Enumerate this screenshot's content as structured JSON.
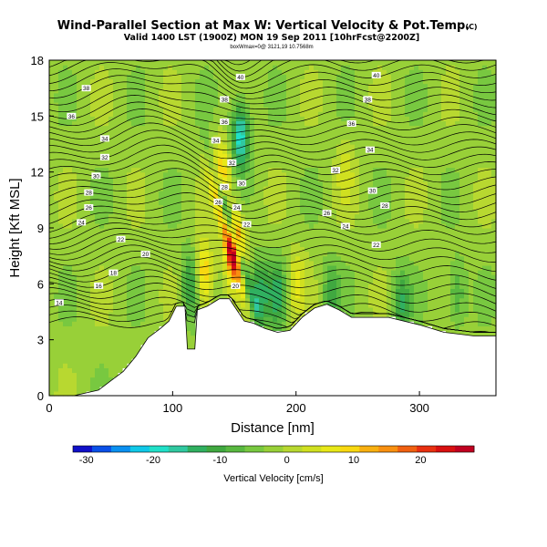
{
  "figure": {
    "title": "Wind-Parallel Section at Max W: Vertical Velocity & Pot.Temp.",
    "copyright": "(C)",
    "subtitle": "Valid 1400 LST (1900Z) MON 19 Sep 2011 [10hrFcst@2200Z]",
    "fineprint": "boxWmax=0@ 3121,19 10.7568m"
  },
  "chart_data": {
    "type": "heatmap",
    "xlabel": "Distance [nm]",
    "ylabel": "Height [Kft MSL]",
    "xlim": [
      0,
      362
    ],
    "ylim": [
      0,
      18
    ],
    "x_ticks": [
      0,
      100,
      200,
      300
    ],
    "y_ticks": [
      0,
      3,
      6,
      9,
      12,
      15,
      18
    ],
    "colorbar": {
      "label": "Vertical Velocity [cm/s]",
      "ticks": [
        -30,
        -20,
        -10,
        0,
        10,
        20
      ],
      "min": -32,
      "max": 28,
      "colors": [
        "#1010c8",
        "#0a50e8",
        "#0a90f0",
        "#10c8e8",
        "#20e0c8",
        "#30c8a0",
        "#30b060",
        "#40a840",
        "#58b840",
        "#78c840",
        "#98d038",
        "#b8d830",
        "#d0e020",
        "#e8e818",
        "#f8d810",
        "#f8b010",
        "#f89010",
        "#f06010",
        "#e83010",
        "#d81010",
        "#c00020"
      ]
    },
    "terrain_height_kft": [
      [
        0,
        0
      ],
      [
        20,
        0
      ],
      [
        40,
        0.3
      ],
      [
        50,
        0.8
      ],
      [
        60,
        1.3
      ],
      [
        70,
        2.1
      ],
      [
        80,
        3.1
      ],
      [
        90,
        3.6
      ],
      [
        97,
        4.0
      ],
      [
        103,
        4.8
      ],
      [
        110,
        4.8
      ],
      [
        112,
        2.5
      ],
      [
        118,
        2.5
      ],
      [
        120,
        4.6
      ],
      [
        128,
        4.8
      ],
      [
        138,
        5.2
      ],
      [
        146,
        5.2
      ],
      [
        150,
        4.8
      ],
      [
        158,
        4.0
      ],
      [
        165,
        3.9
      ],
      [
        175,
        3.6
      ],
      [
        185,
        3.4
      ],
      [
        195,
        3.5
      ],
      [
        205,
        4.2
      ],
      [
        215,
        4.7
      ],
      [
        225,
        4.9
      ],
      [
        235,
        4.6
      ],
      [
        245,
        4.2
      ],
      [
        255,
        4.2
      ],
      [
        275,
        4.2
      ],
      [
        300,
        3.8
      ],
      [
        320,
        3.4
      ],
      [
        345,
        3.2
      ],
      [
        362,
        3.2
      ]
    ],
    "vertical_velocity_features": [
      {
        "x": 150,
        "z": 8.0,
        "w_cm_s": 25
      },
      {
        "x": 115,
        "z": 6.0,
        "w_cm_s": -12
      },
      {
        "x": 125,
        "z": 6.5,
        "w_cm_s": 15
      },
      {
        "x": 170,
        "z": 5.5,
        "w_cm_s": -12
      },
      {
        "x": 185,
        "z": 5.5,
        "w_cm_s": -10
      },
      {
        "x": 200,
        "z": 6.0,
        "w_cm_s": 8
      },
      {
        "x": 228,
        "z": 5.5,
        "w_cm_s": -8
      },
      {
        "x": 285,
        "z": 5.0,
        "w_cm_s": -10
      },
      {
        "x": 155,
        "z": 14.0,
        "w_cm_s": -18
      },
      {
        "x": 140,
        "z": 12.0,
        "w_cm_s": 12
      },
      {
        "x": 240,
        "z": 12.0,
        "w_cm_s": 5
      },
      {
        "x": 330,
        "z": 5.5,
        "w_cm_s": -8
      }
    ],
    "theta_labels": [
      {
        "text": "38",
        "x": 30,
        "z": 16.5
      },
      {
        "text": "36",
        "x": 18,
        "z": 15.0
      },
      {
        "text": "34",
        "x": 45,
        "z": 13.8
      },
      {
        "text": "32",
        "x": 45,
        "z": 12.8
      },
      {
        "text": "30",
        "x": 38,
        "z": 11.8
      },
      {
        "text": "28",
        "x": 32,
        "z": 10.9
      },
      {
        "text": "26",
        "x": 32,
        "z": 10.1
      },
      {
        "text": "24",
        "x": 26,
        "z": 9.3
      },
      {
        "text": "22",
        "x": 58,
        "z": 8.4
      },
      {
        "text": "20",
        "x": 78,
        "z": 7.6
      },
      {
        "text": "18",
        "x": 52,
        "z": 6.6
      },
      {
        "text": "16",
        "x": 40,
        "z": 5.9
      },
      {
        "text": "14",
        "x": 8,
        "z": 5.0
      },
      {
        "text": "40",
        "x": 155,
        "z": 17.1
      },
      {
        "text": "38",
        "x": 142,
        "z": 15.9
      },
      {
        "text": "36",
        "x": 142,
        "z": 14.7
      },
      {
        "text": "34",
        "x": 135,
        "z": 13.7
      },
      {
        "text": "32",
        "x": 148,
        "z": 12.5
      },
      {
        "text": "30",
        "x": 156,
        "z": 11.4
      },
      {
        "text": "28",
        "x": 142,
        "z": 11.2
      },
      {
        "text": "26",
        "x": 137,
        "z": 10.4
      },
      {
        "text": "24",
        "x": 152,
        "z": 10.1
      },
      {
        "text": "22",
        "x": 160,
        "z": 9.2
      },
      {
        "text": "20",
        "x": 151,
        "z": 5.9
      },
      {
        "text": "40",
        "x": 265,
        "z": 17.2
      },
      {
        "text": "38",
        "x": 258,
        "z": 15.9
      },
      {
        "text": "36",
        "x": 245,
        "z": 14.6
      },
      {
        "text": "34",
        "x": 260,
        "z": 13.2
      },
      {
        "text": "32",
        "x": 232,
        "z": 12.1
      },
      {
        "text": "30",
        "x": 262,
        "z": 11.0
      },
      {
        "text": "28",
        "x": 272,
        "z": 10.2
      },
      {
        "text": "26",
        "x": 225,
        "z": 9.8
      },
      {
        "text": "24",
        "x": 240,
        "z": 9.1
      },
      {
        "text": "22",
        "x": 265,
        "z": 8.1
      }
    ],
    "grid": false
  }
}
